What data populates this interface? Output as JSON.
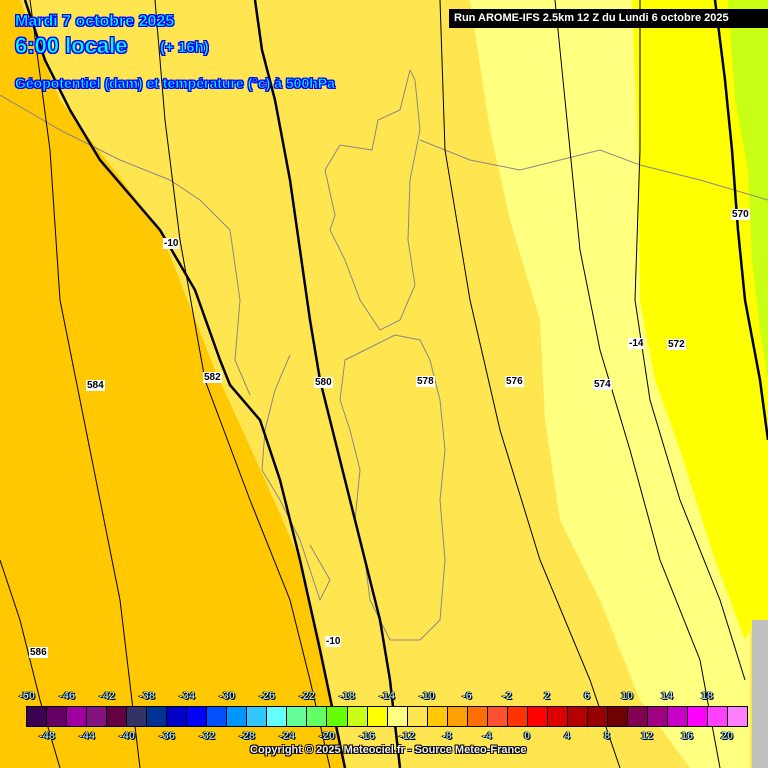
{
  "header": {
    "date": "Mardi 7 octobre 2025",
    "time": "6:00 locale",
    "lead": "(+ 16h)",
    "parameter": "Géopotentiel (dam) et température (°c) à 500hPa",
    "run": "Run AROME-IFS 2.5km 12 Z du Lundi 6 octobre 2025"
  },
  "contour_labels": [
    {
      "text": "-10",
      "kind": "temperature"
    },
    {
      "text": "584",
      "kind": "geopotential"
    },
    {
      "text": "582",
      "kind": "geopotential"
    },
    {
      "text": "580",
      "kind": "geopotential"
    },
    {
      "text": "578",
      "kind": "geopotential"
    },
    {
      "text": "576",
      "kind": "geopotential"
    },
    {
      "text": "574",
      "kind": "geopotential"
    },
    {
      "text": "-14",
      "kind": "temperature"
    },
    {
      "text": "572",
      "kind": "geopotential"
    },
    {
      "text": "570",
      "kind": "geopotential"
    },
    {
      "text": "586",
      "kind": "geopotential"
    },
    {
      "text": "-10",
      "kind": "temperature"
    }
  ],
  "legend": {
    "colors": [
      "#3c0050",
      "#640064",
      "#a000a0",
      "#821482",
      "#640040",
      "#323264",
      "#003296",
      "#0000c8",
      "#0000ff",
      "#0050ff",
      "#0096ff",
      "#32c8ff",
      "#64ffff",
      "#64ff96",
      "#64ff64",
      "#64ff00",
      "#c8ff14",
      "#ffff00",
      "#ffff80",
      "#ffe650",
      "#ffc800",
      "#ffa000",
      "#ff6e00",
      "#ff5032",
      "#ff3200",
      "#ff0000",
      "#dc0000",
      "#b40000",
      "#960000",
      "#6e0000",
      "#820050",
      "#a00082",
      "#c800c8",
      "#ff00ff",
      "#ff40ff",
      "#ff80ff"
    ],
    "top_labels": [
      "-50",
      "-46",
      "-42",
      "-38",
      "-34",
      "-30",
      "-26",
      "-22",
      "-18",
      "-14",
      "-10",
      "-6",
      "-2",
      "2",
      "6",
      "10",
      "14",
      "18"
    ],
    "bottom_labels": [
      "-48",
      "-44",
      "-40",
      "-36",
      "-32",
      "-28",
      "-24",
      "-20",
      "-16",
      "-12",
      "-8",
      "-4",
      "0",
      "4",
      "8",
      "12",
      "16",
      "20"
    ]
  },
  "copyright": "Copyright © 2025 Meteociel.fr - Source Meteo-France"
}
